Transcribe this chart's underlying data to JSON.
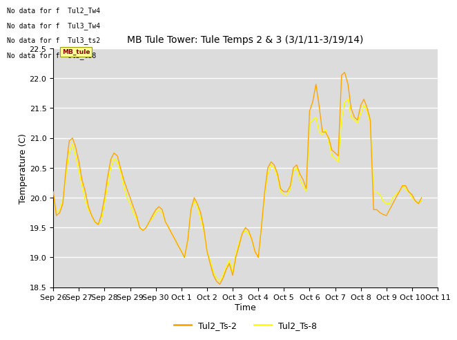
{
  "title": "MB Tule Tower: Tule Temps 2 & 3 (3/1/11-3/19/14)",
  "xlabel": "Time",
  "ylabel": "Temperature (C)",
  "ylim": [
    18.5,
    22.5
  ],
  "bg_color": "#dcdcdc",
  "line1_color": "#FFA500",
  "line2_color": "#FFFF00",
  "legend_labels": [
    "Tul2_Ts-2",
    "Tul2_Ts-8"
  ],
  "no_data_texts": [
    "No data for f  Tul2_Tw4",
    "No data for f  Tul3_Tw4",
    "No data for f  Tul3_ts2",
    "No data for f  Ul3_ts8"
  ],
  "tick_labels": [
    "Sep 26",
    "Sep 27",
    "Sep 28",
    "Sep 29",
    "Sep 30",
    "Oct 1",
    "Oct 2",
    "Oct 3",
    "Oct 4",
    "Oct 5",
    "Oct 6",
    "Oct 7",
    "Oct 8",
    "Oct 9",
    "Oct 10",
    "Oct 11"
  ],
  "x_values_1": [
    0,
    0.12,
    0.25,
    0.37,
    0.5,
    0.62,
    0.75,
    0.87,
    1.0,
    1.12,
    1.25,
    1.37,
    1.5,
    1.62,
    1.75,
    1.87,
    2.0,
    2.12,
    2.25,
    2.37,
    2.5,
    2.62,
    2.75,
    2.87,
    3.0,
    3.12,
    3.25,
    3.37,
    3.5,
    3.62,
    3.75,
    3.87,
    4.0,
    4.12,
    4.25,
    4.37,
    4.5,
    4.62,
    4.75,
    4.87,
    5.0,
    5.12,
    5.25,
    5.37,
    5.5,
    5.62,
    5.75,
    5.87,
    6.0,
    6.12,
    6.25,
    6.37,
    6.5,
    6.62,
    6.75,
    6.87,
    7.0,
    7.12,
    7.25,
    7.37,
    7.5,
    7.62,
    7.75,
    7.87,
    8.0,
    8.12,
    8.25,
    8.37,
    8.5,
    8.62,
    8.75,
    8.87,
    9.0,
    9.12,
    9.25,
    9.37,
    9.5,
    9.62,
    9.75,
    9.87,
    10.0,
    10.12,
    10.25,
    10.37,
    10.5,
    10.62,
    10.75,
    10.87,
    11.0,
    11.12,
    11.25,
    11.37,
    11.5,
    11.62,
    11.75,
    11.87,
    12.0,
    12.12,
    12.25,
    12.37,
    12.5,
    12.62,
    12.75,
    12.87,
    13.0,
    13.12,
    13.25,
    13.37,
    13.5,
    13.62,
    13.75,
    13.87,
    14.0,
    14.12,
    14.25,
    14.37
  ],
  "y_values_1": [
    20.1,
    19.7,
    19.75,
    19.9,
    20.5,
    20.95,
    21.0,
    20.85,
    20.6,
    20.3,
    20.1,
    19.85,
    19.7,
    19.6,
    19.55,
    19.7,
    20.0,
    20.35,
    20.65,
    20.75,
    20.7,
    20.5,
    20.3,
    20.15,
    20.0,
    19.85,
    19.7,
    19.5,
    19.45,
    19.5,
    19.6,
    19.7,
    19.8,
    19.85,
    19.8,
    19.6,
    19.5,
    19.4,
    19.3,
    19.2,
    19.1,
    19.0,
    19.3,
    19.8,
    20.0,
    19.9,
    19.75,
    19.5,
    19.1,
    18.9,
    18.7,
    18.6,
    18.55,
    18.65,
    18.8,
    18.9,
    18.7,
    19.0,
    19.2,
    19.4,
    19.5,
    19.45,
    19.3,
    19.1,
    19.0,
    19.5,
    20.1,
    20.5,
    20.6,
    20.55,
    20.4,
    20.15,
    20.1,
    20.1,
    20.2,
    20.5,
    20.55,
    20.4,
    20.3,
    20.15,
    21.45,
    21.6,
    21.9,
    21.55,
    21.1,
    21.1,
    21.0,
    20.8,
    20.75,
    20.7,
    22.05,
    22.1,
    21.9,
    21.5,
    21.35,
    21.3,
    21.55,
    21.65,
    21.5,
    21.3,
    19.8,
    19.8,
    19.75,
    19.72,
    19.7,
    19.8,
    19.9,
    20.0,
    20.1,
    20.2,
    20.2,
    20.1,
    20.05,
    19.95,
    19.9,
    20.0
  ],
  "y_values_2": [
    20.0,
    19.75,
    19.8,
    19.95,
    20.4,
    20.75,
    20.9,
    20.7,
    20.45,
    20.2,
    19.95,
    19.8,
    19.7,
    19.6,
    19.55,
    19.6,
    19.9,
    20.2,
    20.5,
    20.65,
    20.6,
    20.45,
    20.2,
    20.0,
    19.9,
    19.75,
    19.65,
    19.5,
    19.45,
    19.5,
    19.6,
    19.65,
    19.75,
    19.8,
    19.75,
    19.6,
    19.5,
    19.4,
    19.3,
    19.2,
    19.1,
    19.0,
    19.3,
    19.8,
    19.95,
    19.85,
    19.65,
    19.45,
    19.1,
    18.95,
    18.75,
    18.65,
    18.6,
    18.7,
    18.85,
    18.95,
    18.75,
    19.05,
    19.25,
    19.4,
    19.45,
    19.4,
    19.3,
    19.1,
    19.0,
    19.5,
    20.05,
    20.4,
    20.55,
    20.5,
    20.35,
    20.1,
    20.05,
    20.05,
    20.15,
    20.45,
    20.5,
    20.3,
    20.2,
    20.1,
    21.25,
    21.3,
    21.35,
    21.1,
    21.05,
    21.15,
    20.95,
    20.7,
    20.65,
    20.6,
    21.3,
    21.6,
    21.65,
    21.35,
    21.3,
    21.25,
    21.4,
    21.55,
    21.45,
    21.25,
    20.1,
    20.1,
    20.05,
    19.95,
    19.9,
    19.9,
    20.0,
    20.05,
    20.1,
    20.2,
    20.15,
    20.1,
    20.0,
    19.95,
    19.9,
    19.95
  ]
}
